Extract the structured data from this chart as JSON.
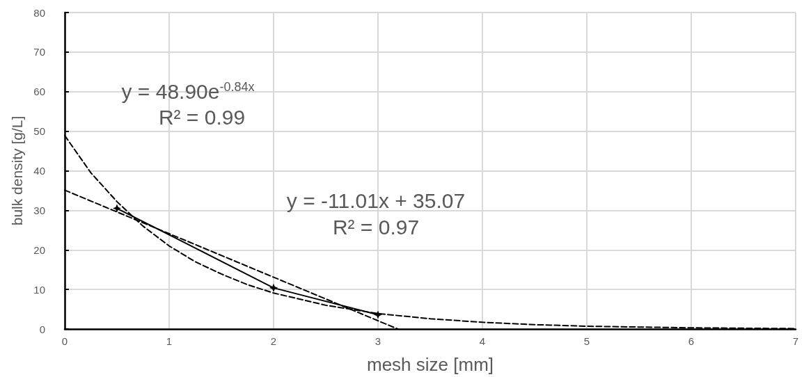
{
  "chart_data": {
    "type": "line",
    "xlabel": "mesh size [mm]",
    "ylabel": "bulk density [g/L]",
    "xlim": [
      0,
      7
    ],
    "xticks": [
      0,
      1,
      2,
      3,
      4,
      5,
      6,
      7
    ],
    "ylim": [
      0,
      80
    ],
    "yticks": [
      0,
      10,
      20,
      30,
      40,
      50,
      60,
      70,
      80
    ],
    "grid": true,
    "series": [
      {
        "color": "#000000",
        "x": [
          0.5,
          2,
          3
        ],
        "values": [
          30.5,
          10.4,
          3.6
        ],
        "marker": "star",
        "line_style": "solid"
      },
      {
        "color": "#000000",
        "x": [
          0,
          3.19
        ],
        "values": [
          35.1,
          0
        ],
        "marker": "none",
        "line_style": "dashed"
      },
      {
        "color": "#000000",
        "x": [
          0,
          0.25,
          0.5,
          0.75,
          1,
          1.25,
          1.5,
          1.75,
          2,
          2.5,
          3,
          3.5,
          4,
          4.5,
          5,
          5.5,
          6,
          6.5,
          7
        ],
        "values": [
          48.9,
          39.5,
          32.2,
          26.0,
          21.0,
          17.0,
          13.9,
          11.2,
          9.1,
          6.0,
          3.9,
          2.6,
          1.7,
          1.1,
          0.7,
          0.5,
          0.3,
          0.2,
          0.1
        ],
        "marker": "none",
        "line_style": "dashed"
      }
    ],
    "annotations": [
      "y = 48.90e$^{-0.84x}$",
      "R² = 0.99",
      "y = -11.01x + 35.07",
      "R² = 0.97"
    ]
  }
}
